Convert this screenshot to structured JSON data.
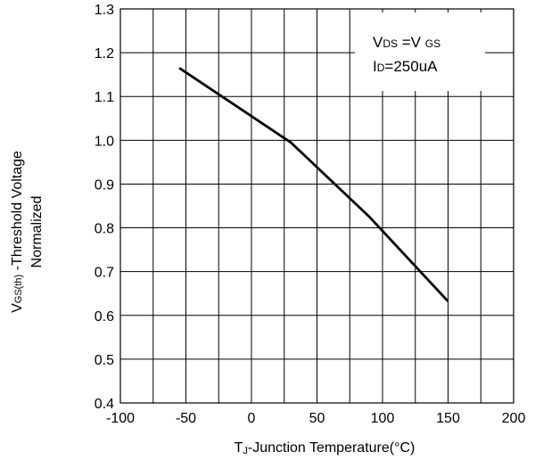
{
  "chart_data": {
    "type": "line",
    "xlabel": {
      "main": "T",
      "sub": "J",
      "rest": "-Junction Temperature(°C)"
    },
    "ylabel": {
      "line1_main": "V",
      "line1_sub": "GS(th)",
      "line1_rest": " -Threshold Voltage",
      "line2": "Normalized"
    },
    "xlim": [
      -100,
      200
    ],
    "ylim": [
      0.4,
      1.3
    ],
    "xticks": [
      -100,
      -50,
      0,
      50,
      100,
      150,
      200
    ],
    "yticks": [
      0.4,
      0.5,
      0.6,
      0.7,
      0.8,
      0.9,
      1.0,
      1.1,
      1.2,
      1.3
    ],
    "ytick_labels": [
      "0.4",
      "0.5",
      "0.6",
      "0.7",
      "0.8",
      "0.9",
      "1.0",
      "1.1",
      "1.2",
      "1.3"
    ],
    "x_minor_step": 25,
    "grid": true,
    "legend": "none",
    "line_color": "#000000",
    "series": [
      {
        "x": [
          -55,
          30,
          90,
          150
        ],
        "y": [
          1.165,
          0.995,
          0.825,
          0.632
        ]
      }
    ],
    "annotation": {
      "line1": {
        "a_main": "V",
        "a_sub": "DS",
        "mid": " =V ",
        "b_sub": "GS"
      },
      "line2": {
        "main": "I",
        "sub": "D",
        "rest": "=250uA"
      }
    }
  }
}
